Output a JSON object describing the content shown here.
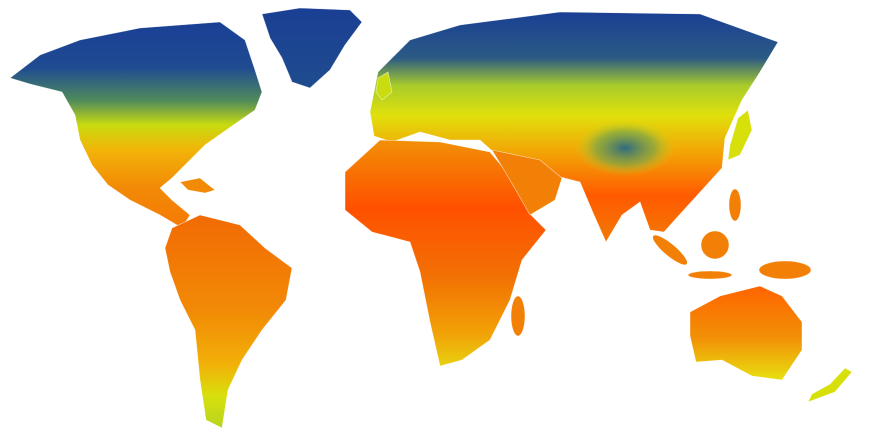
{
  "map": {
    "type": "world-heatmap",
    "colors": {
      "cold": "#1a3f94",
      "cool": "#4f8a5c",
      "mild": "#d4e00c",
      "warm": "#f29a06",
      "hot": "#ff4a00",
      "borders": "#ffffff",
      "background": "#ffffff"
    }
  }
}
